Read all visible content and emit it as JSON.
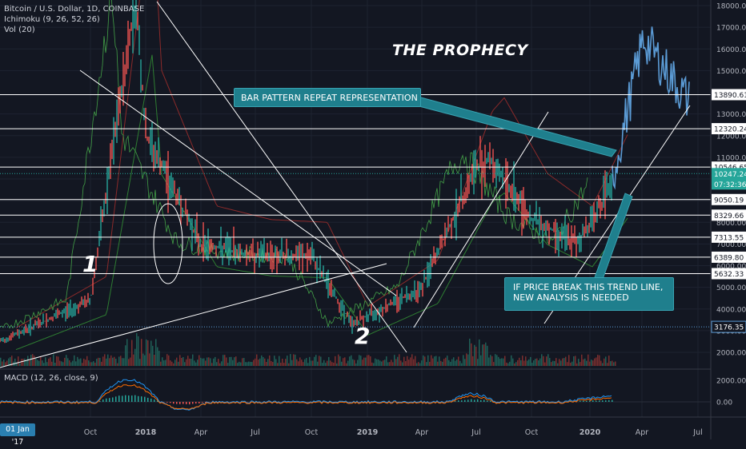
{
  "legend": {
    "symbol": "Bitcoin / U.S. Dollar, 1D, COINBASE",
    "ichimoku": "Ichimoku (9, 26, 52, 26)",
    "volume": "Vol (20)",
    "macd": "MACD (12, 26, close, 9)"
  },
  "annotations": {
    "title": "THE PROPHECY",
    "callout_pattern": "BAR PATTERN REPEAT REPRESENTATION",
    "callout_trend_line1": "IF PRICE BREAK THIS TREND LINE,",
    "callout_trend_line2": "NEW ANALYSIS IS NEEDED",
    "wave_1": "1",
    "wave_2": "2"
  },
  "cursor_date": "01 Jan '17",
  "price_axis": {
    "ticks": [
      "18000.00",
      "17000.00",
      "16000.00",
      "15000.00",
      "13000.00",
      "12000.00",
      "11000.00",
      "10000.00",
      "9000.00",
      "8000.00",
      "7000.00",
      "6000.00",
      "5000.00",
      "4000.00",
      "3000.00",
      "2000.00"
    ],
    "levels": [
      {
        "label": "13890.61",
        "value": 13890.61
      },
      {
        "label": "12320.24",
        "value": 12320.24
      },
      {
        "label": "10546.65",
        "value": 10546.65
      },
      {
        "label": "9050.19",
        "value": 9050.19
      },
      {
        "label": "8329.66",
        "value": 8329.66
      },
      {
        "label": "7313.55",
        "value": 7313.55
      },
      {
        "label": "6389.80",
        "value": 6389.8
      },
      {
        "label": "5632.33",
        "value": 5632.33
      }
    ],
    "current_price": {
      "label": "10247.24",
      "value": 10247.24,
      "color": "#26a69a"
    },
    "countdown": "07:32:36",
    "support_level": {
      "label": "3176.35",
      "value": 3176.35
    }
  },
  "macd_axis": {
    "ticks": [
      "2000.00",
      "0.00"
    ]
  },
  "time_axis": {
    "ticks": [
      "Oct",
      "2018",
      "Apr",
      "Jul",
      "Oct",
      "2019",
      "Apr",
      "Jul",
      "Oct",
      "2020",
      "Apr",
      "Jul"
    ]
  },
  "colors": {
    "background": "#131722",
    "up": "#26a69a",
    "down": "#ef5350",
    "projection": "#5b9bd5",
    "cloud_green": "#2e7d32",
    "cloud_red": "#8b2a2a",
    "accent_callout": "#1f7f8d"
  },
  "chart_data": {
    "type": "line",
    "title": "",
    "x": [
      "2017-07",
      "2017-10",
      "2017-12",
      "2018-01",
      "2018-04",
      "2018-07",
      "2018-10",
      "2018-12",
      "2019-04",
      "2019-06",
      "2019-07",
      "2019-10",
      "2019-12",
      "2020-01",
      "2020-02",
      "2020-04",
      "2020-06"
    ],
    "series": [
      {
        "values": [
          2500,
          4400,
          18500,
          12000,
          7000,
          6500,
          6400,
          3300,
          5000,
          10500,
          11000,
          8200,
          7000,
          8000,
          10000,
          16500,
          13500
        ]
      }
    ],
    "ylim": [
      2000,
      18500
    ],
    "xlabel": "",
    "ylabel": ""
  }
}
